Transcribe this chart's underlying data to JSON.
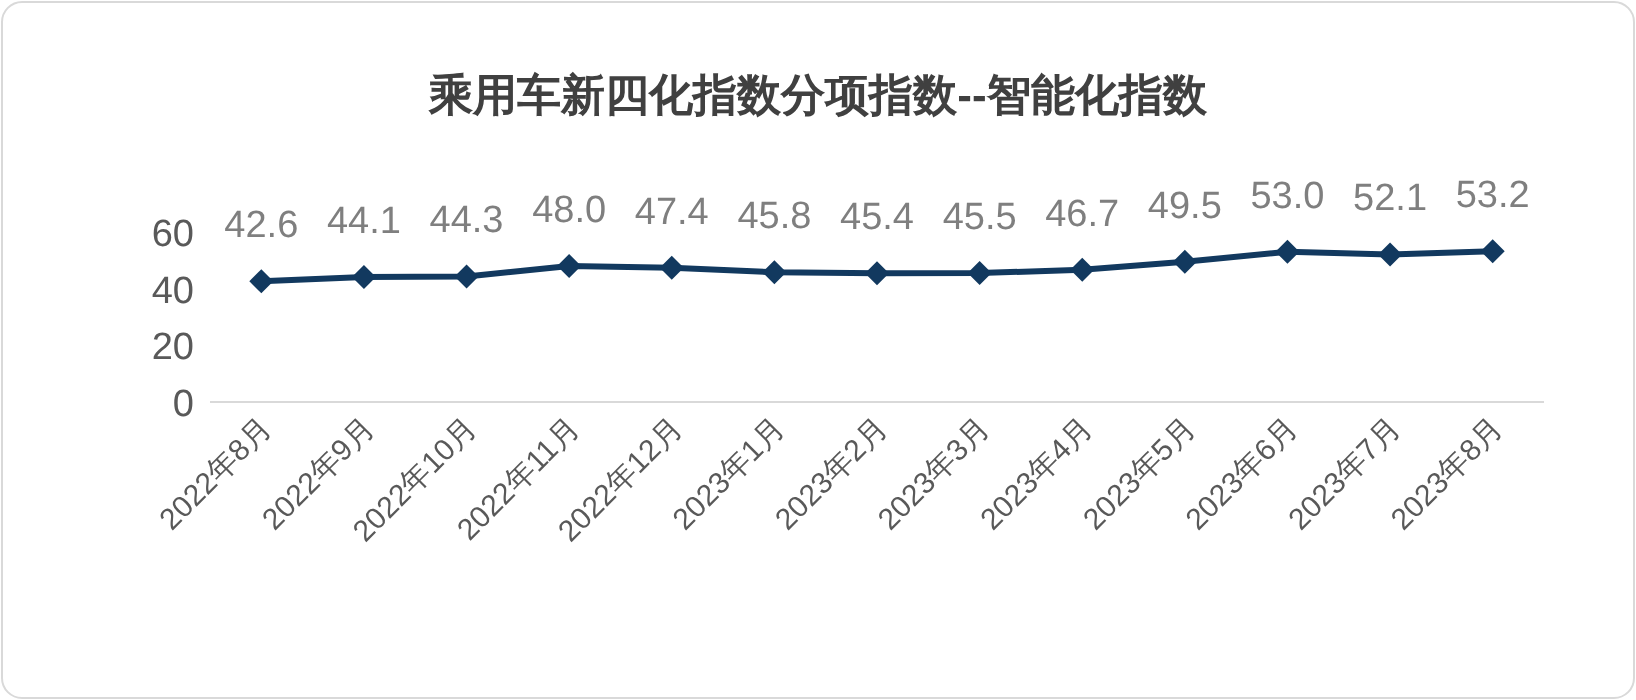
{
  "chart_data": {
    "type": "line",
    "title": "乘用车新四化指数分项指数--智能化指数",
    "categories": [
      "2022年8月",
      "2022年9月",
      "2022年10月",
      "2022年11月",
      "2022年12月",
      "2023年1月",
      "2023年2月",
      "2023年3月",
      "2023年4月",
      "2023年5月",
      "2023年6月",
      "2023年7月",
      "2023年8月"
    ],
    "series": [
      {
        "color": "#12395f",
        "values": [
          42.6,
          44.1,
          44.3,
          48.0,
          47.4,
          45.8,
          45.4,
          45.5,
          46.7,
          49.5,
          53.0,
          52.1,
          53.2
        ],
        "value_labels": [
          "42.6",
          "44.1",
          "44.3",
          "48.0",
          "47.4",
          "45.8",
          "45.4",
          "45.5",
          "46.7",
          "49.5",
          "53.0",
          "52.1",
          "53.2"
        ]
      }
    ],
    "ylim": [
      0,
      60
    ],
    "yticks": [
      0,
      20,
      40,
      60
    ],
    "marker": "diamond",
    "line_style": "solid",
    "grid": false
  }
}
